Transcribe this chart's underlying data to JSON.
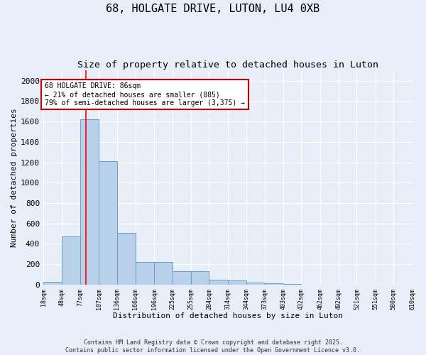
{
  "title1": "68, HOLGATE DRIVE, LUTON, LU4 0XB",
  "title2": "Size of property relative to detached houses in Luton",
  "xlabel": "Distribution of detached houses by size in Luton",
  "ylabel": "Number of detached properties",
  "bin_edges": [
    18,
    48,
    77,
    107,
    136,
    166,
    196,
    225,
    255,
    284,
    314,
    344,
    373,
    403,
    432,
    462,
    492,
    521,
    551,
    580,
    610
  ],
  "bar_heights": [
    30,
    470,
    1620,
    1210,
    510,
    220,
    220,
    130,
    130,
    50,
    40,
    20,
    15,
    5,
    3,
    2,
    1,
    1,
    0,
    0
  ],
  "bar_color": "#b8d0ea",
  "bar_edge_color": "#6a9ec5",
  "background_color": "#e8eef8",
  "grid_color": "#ffffff",
  "red_line_x": 86,
  "annotation_line1": "68 HOLGATE DRIVE: 86sqm",
  "annotation_line2": "← 21% of detached houses are smaller (885)",
  "annotation_line3": "79% of semi-detached houses are larger (3,375) →",
  "annotation_box_facecolor": "white",
  "annotation_box_edgecolor": "#cc0000",
  "ylim": [
    0,
    2100
  ],
  "yticks": [
    0,
    200,
    400,
    600,
    800,
    1000,
    1200,
    1400,
    1600,
    1800,
    2000
  ],
  "footer1": "Contains HM Land Registry data © Crown copyright and database right 2025.",
  "footer2": "Contains public sector information licensed under the Open Government Licence v3.0.",
  "title1_fontsize": 11,
  "title2_fontsize": 9.5,
  "axis_label_fontsize": 8,
  "ytick_fontsize": 8,
  "xtick_fontsize": 6,
  "annotation_fontsize": 7,
  "footer_fontsize": 6
}
